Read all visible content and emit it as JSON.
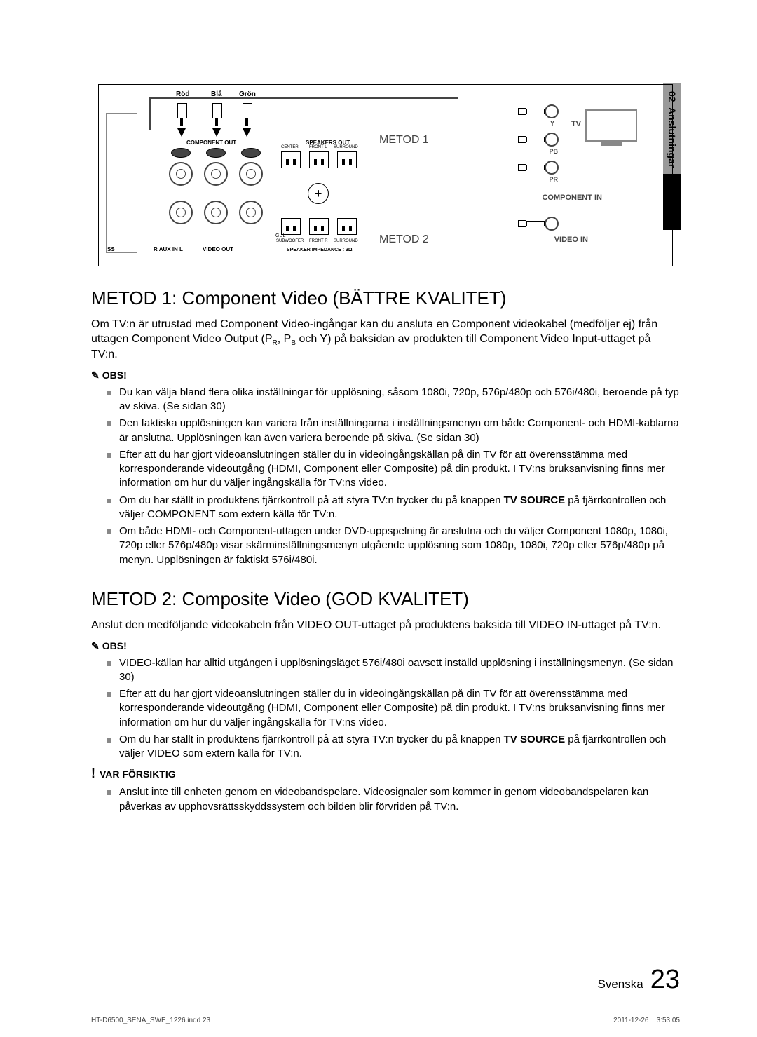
{
  "side_tab": {
    "section_num": "02",
    "section_title": "Anslutningar"
  },
  "diagram": {
    "cable_colors": {
      "red": "Röd",
      "blue": "Blå",
      "green": "Grön"
    },
    "component_out": "COMPONENT OUT",
    "speakers_out": "SPEAKERS OUT",
    "speaker_impedance": "SPEAKER IMPEDANCE : 3Ω",
    "aux_in": "R  AUX IN  L",
    "ss": "SS",
    "video_out": "VIDEO OUT",
    "gu": "GUL",
    "speaker_row1": {
      "center": "CENTER",
      "front_l": "FRONT L",
      "surround": "SURROUND"
    },
    "speaker_row2": {
      "subwoofer": "SUBWOOFER",
      "front_r": "FRONT R",
      "surround": "SURROUND"
    },
    "plus": "+",
    "metod1": "METOD 1",
    "metod2": "METOD 2",
    "tv": "TV",
    "y": "Y",
    "pb": "PB",
    "pr": "PR",
    "component_in": "COMPONENT  IN",
    "video_in": "VIDEO  IN"
  },
  "section1": {
    "heading": "METOD 1: Component Video (BÄTTRE KVALITET)",
    "intro_a": "Om TV:n är utrustad med Component Video-ingångar kan du ansluta en Component videokabel (medföljer ej) från uttagen Component Video Output (P",
    "intro_r": "R",
    "intro_b": ", P",
    "intro_bb": "B",
    "intro_c": " och Y) på baksidan av produkten till Component Video Input-uttaget på TV:n.",
    "obs_label": "OBS!",
    "bullets": [
      "Du kan välja bland flera olika inställningar för upplösning, såsom 1080i, 720p, 576p/480p och 576i/480i, beroende på typ av skiva. (Se sidan 30)",
      "Den faktiska upplösningen kan variera från inställningarna i inställningsmenyn om både Component- och HDMI-kablarna är anslutna. Upplösningen kan även variera beroende på skiva. (Se sidan 30)",
      "Efter att du har gjort videoanslutningen ställer du in videoingångskällan på din TV för att överensstämma med korresponderande videoutgång (HDMI, Component eller Composite) på din produkt.\nI TV:ns bruksanvisning finns mer information om hur du väljer ingångskälla för TV:ns video.",
      "Om du har ställt in produktens fjärrkontroll på att styra TV:n trycker du på knappen TV SOURCE på fjärrkontrollen och väljer COMPONENT som extern källa för TV:n.",
      "Om både HDMI- och Component-uttagen under DVD-uppspelning är anslutna och du väljer Component 1080p, 1080i, 720p eller 576p/480p visar skärminställningsmenyn utgående upplösning som 1080p, 1080i, 720p eller 576p/480p på menyn. Upplösningen är faktiskt 576i/480i."
    ]
  },
  "section2": {
    "heading": "METOD 2: Composite Video (GOD KVALITET)",
    "intro": "Anslut den medföljande videokabeln från VIDEO OUT-uttaget på produktens baksida till VIDEO IN-uttaget på TV:n.",
    "obs_label": "OBS!",
    "bullets": [
      "VIDEO-källan har alltid utgången i upplösningsläget 576i/480i oavsett inställd upplösning i inställningsmenyn. (Se sidan 30)",
      "Efter att du har gjort videoanslutningen ställer du in videoingångskällan på din TV för att överensstämma med korresponderande videoutgång (HDMI, Component eller Composite) på din produkt.\nI TV:ns bruksanvisning finns mer information om hur du väljer ingångskälla för TV:ns video.",
      "Om du har ställt in produktens fjärrkontroll på att styra TV:n trycker du på knappen TV SOURCE på fjärrkontrollen och väljer VIDEO som extern källa för TV:n."
    ],
    "caution_label": "VAR FÖRSIKTIG",
    "caution_bullets": [
      "Anslut inte till enheten genom en videobandspelare. Videosignaler som kommer in genom videobandspelaren kan påverkas av upphovsrättsskyddssystem och bilden blir förvriden på TV:n."
    ]
  },
  "footer": {
    "language": "Svenska",
    "page_number": "23"
  },
  "print_meta": {
    "file": "HT-D6500_SENA_SWE_1226.indd   23",
    "date": "2011-12-26",
    "time": "3:53:05"
  }
}
